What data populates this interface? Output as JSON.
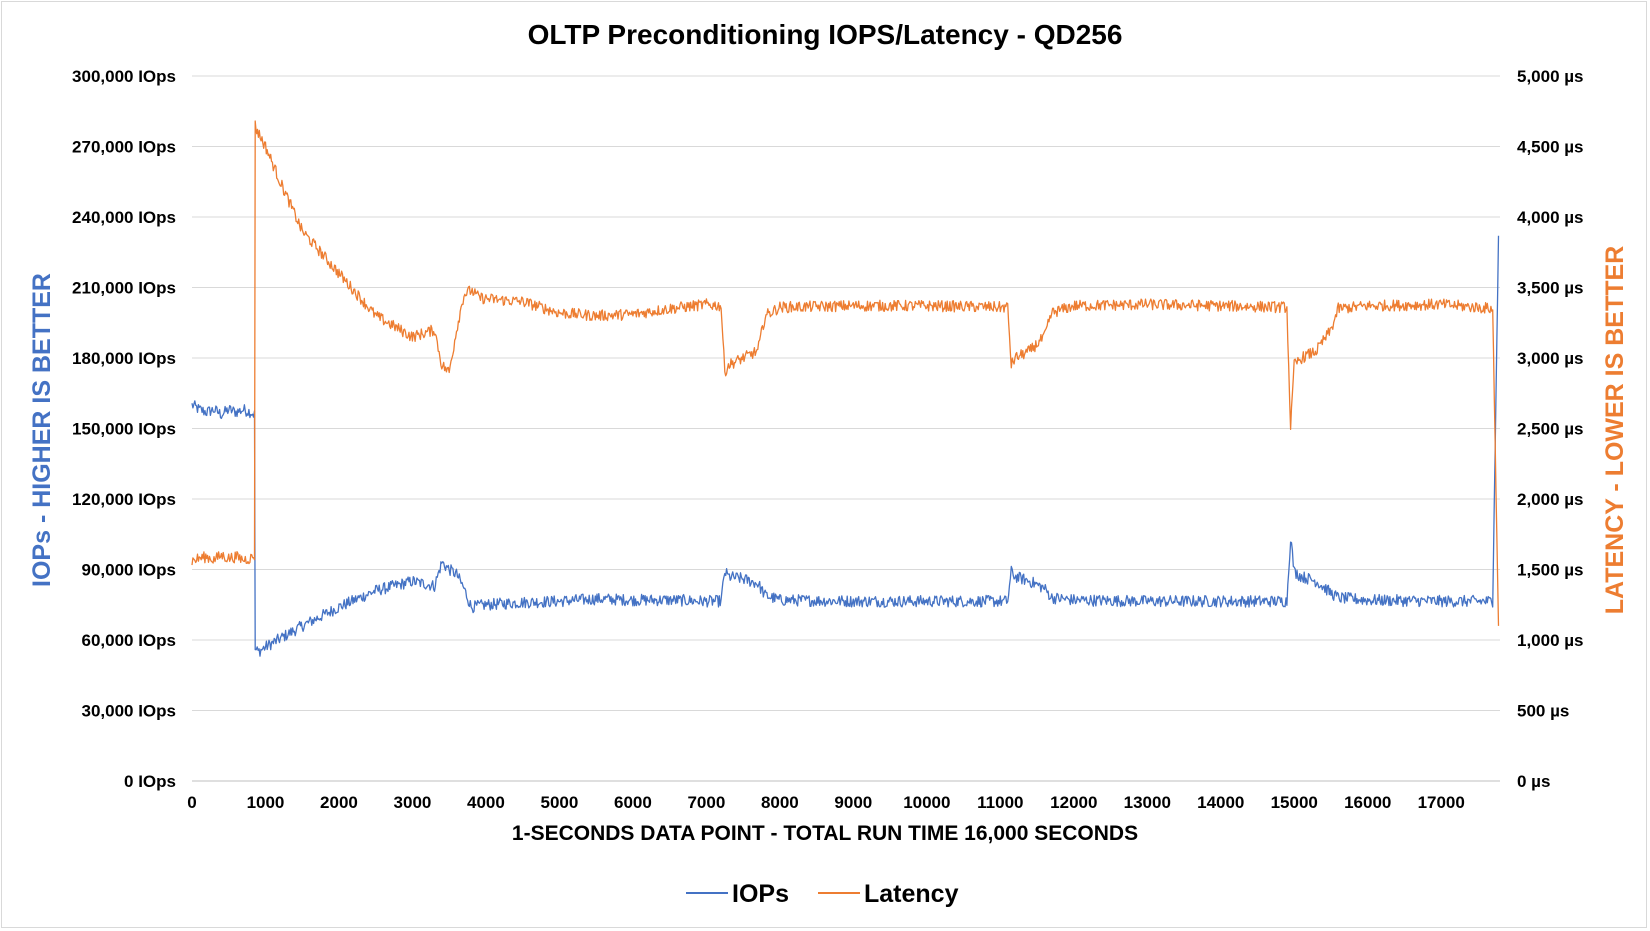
{
  "chart_data": {
    "type": "line",
    "title": "OLTP Preconditioning IOPS/Latency  - QD256",
    "xlabel": "1-SECONDS DATA POINT - TOTAL RUN TIME 16,000 SECONDS",
    "ylabel_left": "IOPs - HIGHER IS BETTER",
    "ylabel_right": "LATENCY - LOWER IS BETTER",
    "xlim": [
      0,
      17800
    ],
    "ylim_left": [
      0,
      300000
    ],
    "ylim_right": [
      0,
      5000
    ],
    "x_ticks": [
      "0",
      "1000",
      "2000",
      "3000",
      "4000",
      "5000",
      "6000",
      "7000",
      "8000",
      "9000",
      "10000",
      "11000",
      "12000",
      "13000",
      "14000",
      "15000",
      "16000",
      "17000"
    ],
    "x_tick_values": [
      0,
      1000,
      2000,
      3000,
      4000,
      5000,
      6000,
      7000,
      8000,
      9000,
      10000,
      11000,
      12000,
      13000,
      14000,
      15000,
      16000,
      17000
    ],
    "y_left_ticks": [
      "0 IOps",
      "30,000 IOps",
      "60,000 IOps",
      "90,000 IOps",
      "120,000 IOps",
      "150,000 IOps",
      "180,000 IOps",
      "210,000 IOps",
      "240,000 IOps",
      "270,000 IOps",
      "300,000 IOps"
    ],
    "y_left_tick_values": [
      0,
      30000,
      60000,
      90000,
      120000,
      150000,
      180000,
      210000,
      240000,
      270000,
      300000
    ],
    "y_right_ticks": [
      "0 µs",
      "500 µs",
      "1,000 µs",
      "1,500 µs",
      "2,000 µs",
      "2,500 µs",
      "3,000 µs",
      "3,500 µs",
      "4,000 µs",
      "4,500 µs",
      "5,000 µs"
    ],
    "y_right_tick_values": [
      0,
      500,
      1000,
      1500,
      2000,
      2500,
      3000,
      3500,
      4000,
      4500,
      5000
    ],
    "grid": true,
    "legend_position": "bottom",
    "legend": [
      "IOPs",
      "Latency"
    ],
    "series": [
      {
        "name": "IOPs",
        "axis": "left",
        "color": "#4472c4",
        "x": [
          0,
          100,
          200,
          300,
          400,
          500,
          600,
          700,
          800,
          850,
          860,
          900,
          1000,
          1500,
          2000,
          2500,
          3000,
          3300,
          3400,
          3500,
          3600,
          3700,
          3800,
          3900,
          4000,
          4500,
          5000,
          5500,
          6000,
          6500,
          7000,
          7200,
          7250,
          7300,
          7500,
          7700,
          7800,
          8000,
          9000,
          10000,
          11000,
          11100,
          11150,
          11200,
          11400,
          11600,
          11700,
          12000,
          13000,
          14000,
          14900,
          14950,
          15000,
          15100,
          15300,
          15500,
          15600,
          16000,
          17000,
          17700,
          17780
        ],
        "y": [
          160000,
          158000,
          157000,
          158000,
          156000,
          158000,
          157000,
          158000,
          157000,
          156000,
          56000,
          55000,
          57000,
          66000,
          74000,
          81000,
          85000,
          83000,
          93000,
          90000,
          88000,
          82000,
          74000,
          74500,
          75000,
          76000,
          76500,
          77500,
          77000,
          77000,
          76500,
          76500,
          89000,
          87000,
          86000,
          84000,
          79000,
          77000,
          76500,
          76500,
          76500,
          76500,
          89000,
          87000,
          85000,
          82000,
          78000,
          77000,
          76500,
          76500,
          76500,
          104000,
          89000,
          87000,
          85000,
          80000,
          78000,
          77000,
          76500,
          76500,
          232000
        ]
      },
      {
        "name": "Latency",
        "axis": "right",
        "color": "#ed7d31",
        "x": [
          0,
          100,
          200,
          300,
          400,
          500,
          600,
          700,
          800,
          850,
          860,
          880,
          1000,
          1200,
          1500,
          2000,
          2500,
          3000,
          3300,
          3400,
          3500,
          3600,
          3700,
          3800,
          3900,
          4000,
          4500,
          5000,
          5500,
          6000,
          6500,
          7000,
          7200,
          7250,
          7300,
          7500,
          7700,
          7800,
          8000,
          9000,
          10000,
          11000,
          11100,
          11150,
          11200,
          11400,
          11600,
          11700,
          12000,
          13000,
          14000,
          14900,
          14950,
          15000,
          15100,
          15300,
          15500,
          15600,
          16000,
          17000,
          17700,
          17780
        ],
        "y": [
          1560,
          1580,
          1590,
          1570,
          1600,
          1580,
          1590,
          1570,
          1580,
          1600,
          4650,
          4620,
          4500,
          4250,
          3900,
          3600,
          3300,
          3150,
          3200,
          2950,
          2900,
          3200,
          3450,
          3480,
          3430,
          3420,
          3400,
          3320,
          3300,
          3310,
          3350,
          3380,
          3370,
          2900,
          2950,
          3000,
          3050,
          3300,
          3360,
          3370,
          3370,
          3360,
          3360,
          2950,
          3000,
          3050,
          3150,
          3320,
          3370,
          3380,
          3370,
          3360,
          2500,
          2950,
          3000,
          3050,
          3200,
          3350,
          3370,
          3380,
          3350,
          1100
        ]
      }
    ]
  }
}
